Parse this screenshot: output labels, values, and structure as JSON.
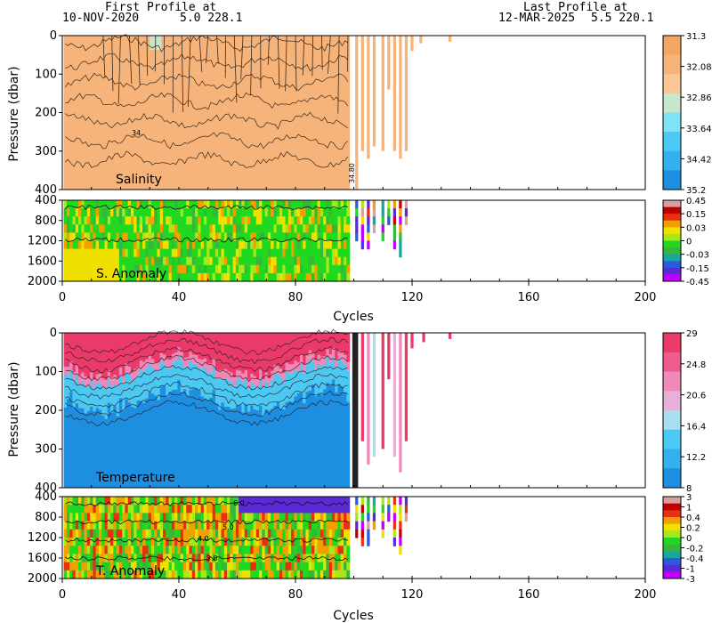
{
  "header": {
    "first_label": "First Profile at",
    "first_date": "10-NOV-2020",
    "first_coords": "5.0  228.1",
    "last_label": "Last Profile at",
    "last_date": "12-MAR-2025",
    "last_coords": "5.5  220.1"
  },
  "chart_data": [
    {
      "type": "heatmap",
      "title": "Salinity",
      "ylabel": "Pressure (dbar)",
      "xlim": [
        0,
        200
      ],
      "ylim": [
        400,
        0
      ],
      "yticks": [
        "0",
        "100",
        "200",
        "300",
        "400"
      ],
      "data_cycles": [
        1,
        118
      ],
      "colorbar": {
        "colors": [
          "#1e8ee0",
          "#34b0ee",
          "#4cc9f3",
          "#80e3f5",
          "#c8e6cc",
          "#f9c796",
          "#f6b37a",
          "#f5a563"
        ],
        "labels": [
          "31.3",
          "32.08",
          "32.86",
          "33.64",
          "34.42",
          "35.2"
        ]
      },
      "contour_labels": [
        "34.",
        "34.80"
      ]
    },
    {
      "type": "heatmap",
      "title": "S. Anomaly",
      "xlim": [
        0,
        200
      ],
      "ylim": [
        2000,
        400
      ],
      "yticks": [
        "400",
        "800",
        "1200",
        "1600",
        "2000"
      ],
      "colorbar": {
        "colors": [
          "#c000ff",
          "#5a2ad6",
          "#2a5ae0",
          "#1aa6a0",
          "#35b83a",
          "#20d820",
          "#a8e818",
          "#f0e000",
          "#f2a000",
          "#e83010",
          "#c00000",
          "#d9a0a0"
        ],
        "labels": [
          "0.45",
          "0.15",
          "0.03",
          "0",
          "-0.03",
          "-0.15",
          "-0.45"
        ]
      }
    },
    {
      "type": "heatmap",
      "title": "Temperature",
      "ylabel": "Pressure (dbar)",
      "xlim": [
        0,
        200
      ],
      "ylim": [
        400,
        0
      ],
      "yticks": [
        "0",
        "100",
        "200",
        "300",
        "400"
      ],
      "colorbar": {
        "colors": [
          "#1e8ee0",
          "#34b0ee",
          "#4cc9f3",
          "#a8def0",
          "#e8b0d8",
          "#f088b8",
          "#ee5c8c",
          "#ea3a6a"
        ],
        "labels": [
          "29",
          "24.8",
          "20.6",
          "16.4",
          "12.2",
          "8"
        ]
      }
    },
    {
      "type": "heatmap",
      "title": "T. Anomaly",
      "xlabel": "Cycles",
      "xlim": [
        0,
        200
      ],
      "ylim": [
        2000,
        400
      ],
      "yticks": [
        "400",
        "800",
        "1200",
        "1600",
        "2000"
      ],
      "xticks": [
        "0",
        "40",
        "80",
        "120",
        "160",
        "200"
      ],
      "contour_labels": [
        "6.0",
        "5.0",
        "4.0",
        "3.0"
      ],
      "colorbar": {
        "colors": [
          "#c000ff",
          "#5a2ad6",
          "#2a5ae0",
          "#1aa6a0",
          "#35b83a",
          "#20d820",
          "#a8e818",
          "#f0e000",
          "#f2a000",
          "#e83010",
          "#c00000",
          "#d9a0a0"
        ],
        "labels": [
          "3",
          "1",
          "0.4",
          "0.2",
          "0",
          "-0.2",
          "-0.4",
          "-1",
          "-3"
        ]
      }
    }
  ],
  "axes": {
    "xlabel_top": "Cycles",
    "xlabel_bottom": "Cycles",
    "xticks": [
      "0",
      "40",
      "80",
      "120",
      "160",
      "200"
    ]
  }
}
